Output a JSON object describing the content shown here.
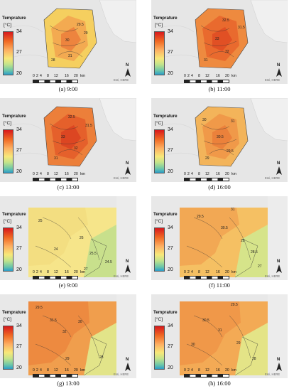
{
  "legend": {
    "title": "Temprature",
    "unit": "[°C]",
    "ticks": [
      "34",
      "27",
      "20"
    ]
  },
  "scale": {
    "ticks": [
      "0",
      "2",
      "4",
      "8",
      "12",
      "16",
      "20"
    ],
    "unit": "km"
  },
  "north_label": "N",
  "credit": "Esri, HERE",
  "colors": {
    "hot": "#e8602a",
    "warm": "#f2a054",
    "mild": "#f4d56b",
    "cool": "#c9e18a",
    "land": "#dcdcdc",
    "sea": "#e9e9e9"
  },
  "panels": [
    {
      "caption": "(a) 9:00",
      "contours": [
        "29.5",
        "29",
        "30",
        "31",
        "28"
      ]
    },
    {
      "caption": "(b) 11:00",
      "contours": [
        "32.5",
        "31.5",
        "33",
        "32",
        "31"
      ]
    },
    {
      "caption": "(c) 13:00",
      "contours": [
        "32.5",
        "31.5",
        "33",
        "32",
        "31"
      ]
    },
    {
      "caption": "(d) 16:00",
      "contours": [
        "30",
        "31",
        "30.5",
        "29.5",
        "29"
      ]
    },
    {
      "caption": "(e) 9:00",
      "contours": [
        "25",
        "26",
        "24",
        "25.5",
        "24.5",
        "27"
      ]
    },
    {
      "caption": "(f) 11:00",
      "contours": [
        "31",
        "30.5",
        "29",
        "28.5",
        "27",
        "29.5"
      ]
    },
    {
      "caption": "(g) 13:00",
      "contours": [
        "29.5",
        "31.5",
        "30",
        "32",
        "28",
        "29"
      ]
    },
    {
      "caption": "(h) 16:00",
      "contours": [
        "29.5",
        "30.5",
        "31",
        "29",
        "28",
        "30"
      ]
    }
  ]
}
